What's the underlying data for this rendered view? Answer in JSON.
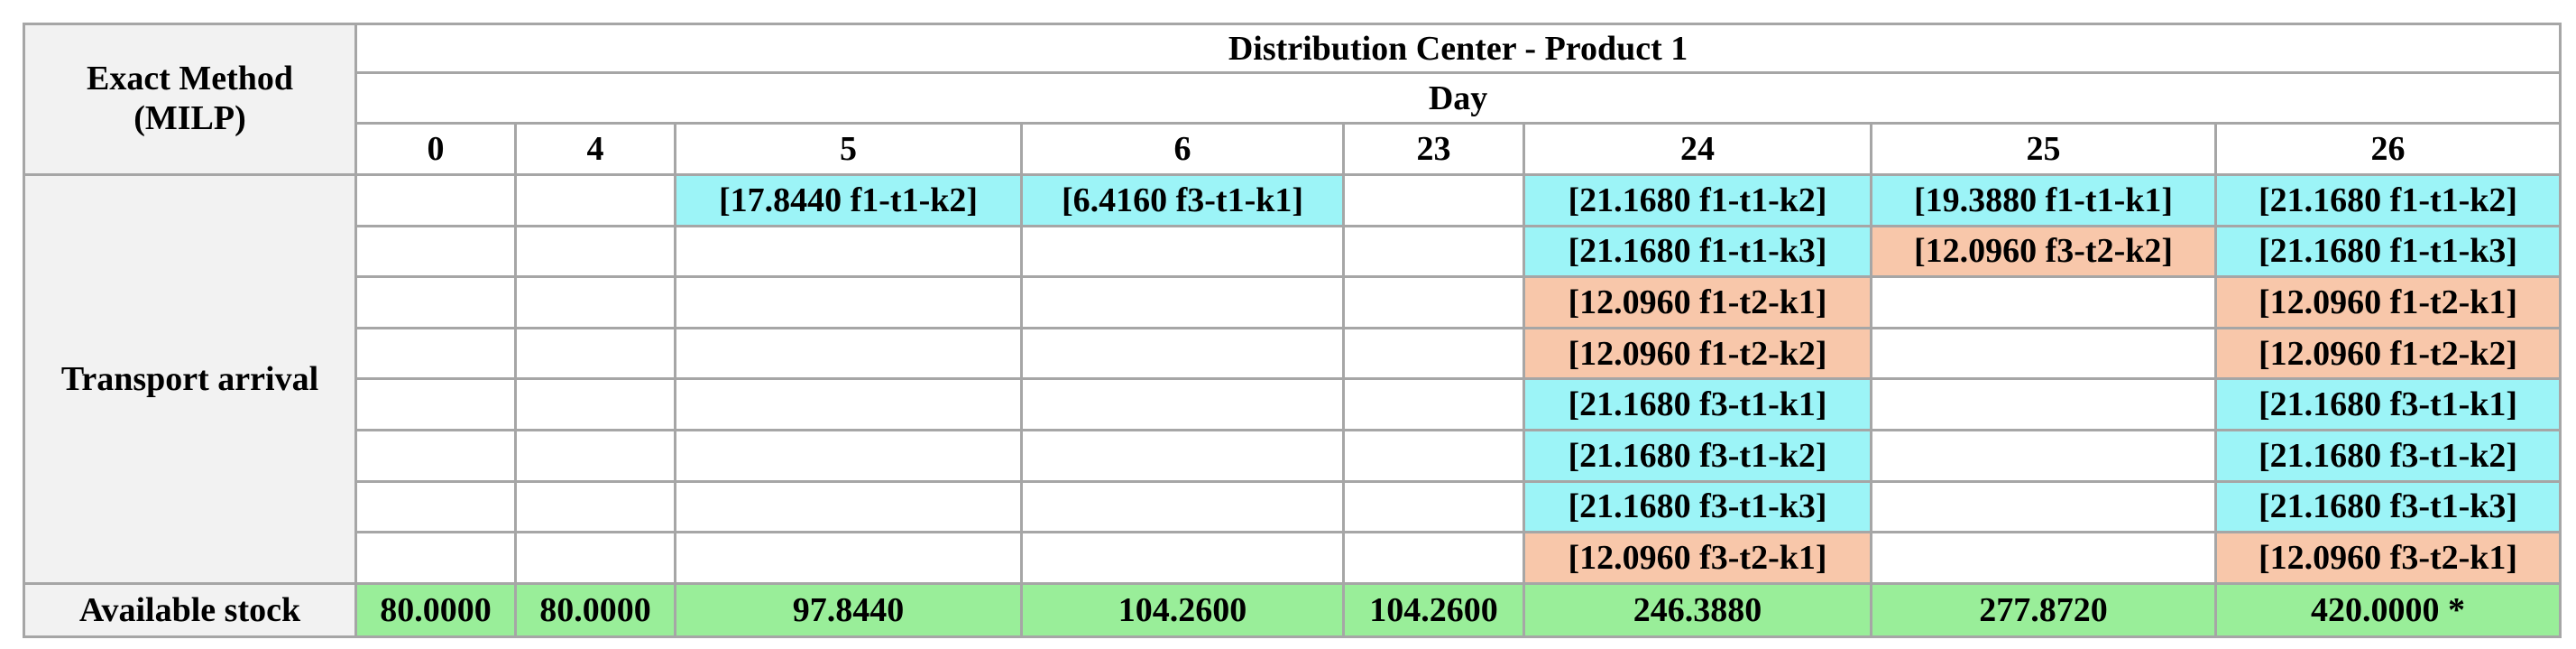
{
  "header": {
    "title_lines": [
      "Exact Method",
      "(MILP)"
    ],
    "group": "Distribution Center - Product 1",
    "sub": "Day",
    "days": [
      "0",
      "4",
      "5",
      "6",
      "23",
      "24",
      "25",
      "26"
    ]
  },
  "transport": {
    "label": "Transport arrival",
    "rows": [
      [
        null,
        null,
        {
          "text": "[17.8440 f1-t1-k2]",
          "color": "#9cf4f7"
        },
        {
          "text": "[6.4160 f3-t1-k1]",
          "color": "#9cf4f7"
        },
        null,
        {
          "text": "[21.1680 f1-t1-k2]",
          "color": "#9cf4f7"
        },
        {
          "text": "[19.3880 f1-t1-k1]",
          "color": "#9cf4f7"
        },
        {
          "text": "[21.1680 f1-t1-k2]",
          "color": "#9cf4f7"
        }
      ],
      [
        null,
        null,
        null,
        null,
        null,
        {
          "text": "[21.1680 f1-t1-k3]",
          "color": "#9cf4f7"
        },
        {
          "text": "[12.0960 f3-t2-k2]",
          "color": "#f8c7aa"
        },
        {
          "text": "[21.1680 f1-t1-k3]",
          "color": "#9cf4f7"
        }
      ],
      [
        null,
        null,
        null,
        null,
        null,
        {
          "text": "[12.0960 f1-t2-k1]",
          "color": "#f8c7aa"
        },
        null,
        {
          "text": "[12.0960 f1-t2-k1]",
          "color": "#f8c7aa"
        }
      ],
      [
        null,
        null,
        null,
        null,
        null,
        {
          "text": "[12.0960 f1-t2-k2]",
          "color": "#f8c7aa"
        },
        null,
        {
          "text": "[12.0960 f1-t2-k2]",
          "color": "#f8c7aa"
        }
      ],
      [
        null,
        null,
        null,
        null,
        null,
        {
          "text": "[21.1680 f3-t1-k1]",
          "color": "#9cf4f7"
        },
        null,
        {
          "text": "[21.1680 f3-t1-k1]",
          "color": "#9cf4f7"
        }
      ],
      [
        null,
        null,
        null,
        null,
        null,
        {
          "text": "[21.1680 f3-t1-k2]",
          "color": "#9cf4f7"
        },
        null,
        {
          "text": "[21.1680 f3-t1-k2]",
          "color": "#9cf4f7"
        }
      ],
      [
        null,
        null,
        null,
        null,
        null,
        {
          "text": "[21.1680 f3-t1-k3]",
          "color": "#9cf4f7"
        },
        null,
        {
          "text": "[21.1680 f3-t1-k3]",
          "color": "#9cf4f7"
        }
      ],
      [
        null,
        null,
        null,
        null,
        null,
        {
          "text": "[12.0960 f3-t2-k1]",
          "color": "#f8c7aa"
        },
        null,
        {
          "text": "[12.0960 f3-t2-k1]",
          "color": "#f8c7aa"
        }
      ]
    ]
  },
  "stock": {
    "label": "Available stock",
    "color": "#99ee99",
    "values": [
      "80.0000",
      "80.0000",
      "97.8440",
      "104.2600",
      "104.2600",
      "246.3880",
      "277.8720",
      "420.0000 *"
    ]
  }
}
